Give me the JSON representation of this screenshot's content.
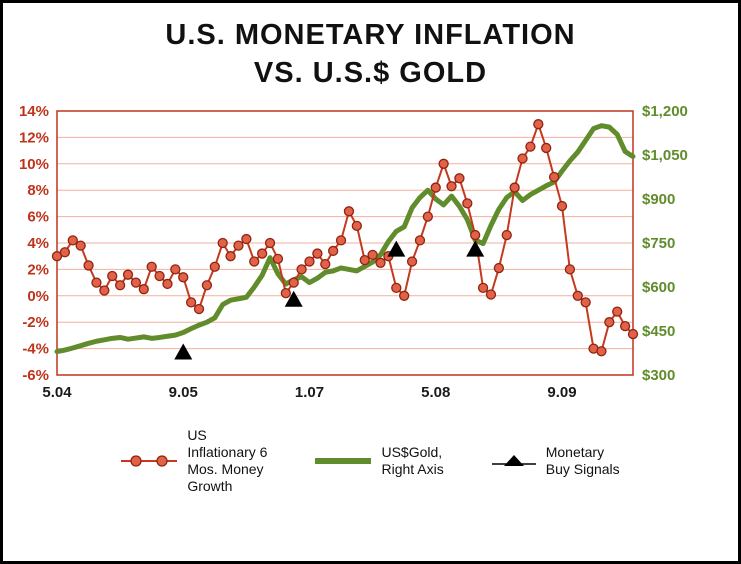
{
  "title": {
    "line1": "U.S. MONETARY INFLATION",
    "line2": "VS. U.S.$ GOLD"
  },
  "chart_data": {
    "type": "line",
    "title": "U.S. MONETARY INFLATION VS. U.S.$ GOLD",
    "grid_color": "#f2b09e",
    "x_range": [
      0,
      73
    ],
    "x_ticks": [
      {
        "label": "5.04",
        "position": 0
      },
      {
        "label": "9.05",
        "position": 16
      },
      {
        "label": "1.07",
        "position": 32
      },
      {
        "label": "5.08",
        "position": 48
      },
      {
        "label": "9.09",
        "position": 64
      }
    ],
    "x_tick_color": "#1a1a1a",
    "left_axis": {
      "min": -6,
      "max": 14,
      "color": "#c0331b",
      "ticks": [
        {
          "label": "14%",
          "value": 14
        },
        {
          "label": "12%",
          "value": 12
        },
        {
          "label": "10%",
          "value": 10
        },
        {
          "label": "8%",
          "value": 8
        },
        {
          "label": "6%",
          "value": 6
        },
        {
          "label": "4%",
          "value": 4
        },
        {
          "label": "2%",
          "value": 2
        },
        {
          "label": "0%",
          "value": 0
        },
        {
          "label": "-2%",
          "value": -2
        },
        {
          "label": "-4%",
          "value": -4
        },
        {
          "label": "-6%",
          "value": -6
        }
      ]
    },
    "right_axis": {
      "min": 300,
      "max": 1200,
      "color": "#618c2c",
      "ticks": [
        {
          "label": "$1,200",
          "value": 1200
        },
        {
          "label": "$1,050",
          "value": 1050
        },
        {
          "label": "$900",
          "value": 900
        },
        {
          "label": "$750",
          "value": 750
        },
        {
          "label": "$600",
          "value": 600
        },
        {
          "label": "$450",
          "value": 450
        },
        {
          "label": "$300",
          "value": 300
        }
      ]
    },
    "series": [
      {
        "name": "US Inflationary 6 Mos. Money Growth",
        "axis": "left",
        "color": "#c43a1e",
        "marker": "circle",
        "marker_fill": "#e16248",
        "marker_stroke": "#8f2410",
        "values": [
          3.0,
          3.3,
          4.2,
          3.8,
          2.3,
          1.0,
          0.4,
          1.5,
          0.8,
          1.6,
          1.0,
          0.5,
          2.2,
          1.5,
          0.9,
          2.0,
          1.4,
          -0.5,
          -1.0,
          0.8,
          2.2,
          4.0,
          3.0,
          3.8,
          4.3,
          2.6,
          3.2,
          4.0,
          2.8,
          0.2,
          1.0,
          2.0,
          2.6,
          3.2,
          2.4,
          3.4,
          4.2,
          6.4,
          5.3,
          2.7,
          3.1,
          2.5,
          3.0,
          0.6,
          0.0,
          2.6,
          4.2,
          6.0,
          8.2,
          10.0,
          8.3,
          8.9,
          7.0,
          4.6,
          0.6,
          0.1,
          2.1,
          4.6,
          8.2,
          10.4,
          11.3,
          13.0,
          11.2,
          9.0,
          6.8,
          2.0,
          0.0,
          -0.5,
          -4.0,
          -4.2,
          -2.0,
          -1.2,
          -2.3,
          -2.9
        ]
      },
      {
        "name": "US$Gold, Right Axis",
        "axis": "right",
        "color": "#618c2c",
        "marker": "none",
        "values": [
          380,
          385,
          392,
          400,
          408,
          415,
          420,
          425,
          428,
          422,
          426,
          430,
          425,
          428,
          432,
          436,
          445,
          458,
          470,
          480,
          495,
          540,
          555,
          560,
          565,
          600,
          640,
          700,
          645,
          610,
          625,
          635,
          615,
          630,
          650,
          655,
          665,
          660,
          655,
          670,
          685,
          710,
          755,
          790,
          805,
          870,
          905,
          930,
          900,
          880,
          910,
          875,
          830,
          760,
          748,
          810,
          865,
          905,
          925,
          895,
          915,
          930,
          945,
          958,
          995,
          1030,
          1060,
          1100,
          1140,
          1150,
          1145,
          1120,
          1062,
          1045
        ]
      },
      {
        "name": "Monetary Buy Signals",
        "axis": "left",
        "color": "#000000",
        "marker": "triangle",
        "points": [
          {
            "x": 16,
            "y": -4.3
          },
          {
            "x": 30,
            "y": -0.3
          },
          {
            "x": 43,
            "y": 3.5
          },
          {
            "x": 53,
            "y": 3.5
          }
        ]
      }
    ]
  },
  "legend": {
    "items": [
      {
        "label_lines": [
          "US",
          "Inflationary 6",
          "Mos. Money",
          "Growth"
        ]
      },
      {
        "label_lines": [
          "US$Gold,",
          "Right Axis"
        ]
      },
      {
        "label_lines": [
          "Monetary",
          "Buy Signals"
        ]
      }
    ]
  }
}
